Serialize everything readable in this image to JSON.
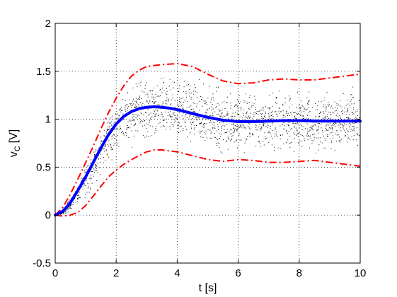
{
  "chart_data": {
    "type": "line",
    "title": "",
    "xlabel": "t [s]",
    "ylabel_main": "v",
    "ylabel_sub": "C",
    "ylabel_unit": "[V]",
    "xlim": [
      0,
      10
    ],
    "ylim": [
      -0.5,
      2
    ],
    "xticks": [
      0,
      2,
      4,
      6,
      8,
      10
    ],
    "yticks": [
      -0.5,
      0,
      0.5,
      1,
      1.5,
      2
    ],
    "xtick_labels": [
      "0",
      "2",
      "4",
      "6",
      "8",
      "10"
    ],
    "ytick_labels": [
      "-0.5",
      "0",
      "0.5",
      "1",
      "1.5",
      "2"
    ],
    "grid": true,
    "legend": "none",
    "colors": {
      "mean": "#0000ff",
      "bounds": "#ff0000",
      "samples": "#000000"
    },
    "series": [
      {
        "role": "mean",
        "style": "solid-thick",
        "x": [
          0,
          0.25,
          0.5,
          0.75,
          1,
          1.25,
          1.5,
          1.75,
          2,
          2.25,
          2.5,
          2.75,
          3,
          3.25,
          3.5,
          3.75,
          4,
          4.5,
          5,
          5.5,
          6,
          6.5,
          7,
          7.5,
          8,
          8.5,
          9,
          9.5,
          10
        ],
        "y": [
          0,
          0.04,
          0.13,
          0.26,
          0.4,
          0.55,
          0.7,
          0.84,
          0.95,
          1.03,
          1.08,
          1.11,
          1.125,
          1.13,
          1.125,
          1.115,
          1.1,
          1.06,
          1.02,
          0.99,
          0.975,
          0.975,
          0.98,
          0.985,
          0.985,
          0.98,
          0.98,
          0.98,
          0.98
        ]
      },
      {
        "role": "upper-bound",
        "style": "dash-dot",
        "x": [
          0,
          0.25,
          0.5,
          0.75,
          1,
          1.25,
          1.5,
          1.75,
          2,
          2.25,
          2.5,
          2.75,
          3,
          3.5,
          4,
          4.5,
          5,
          5.5,
          6,
          6.5,
          7,
          7.5,
          8,
          8.5,
          9,
          9.5,
          10
        ],
        "y": [
          0,
          0.08,
          0.22,
          0.38,
          0.55,
          0.72,
          0.9,
          1.07,
          1.22,
          1.35,
          1.45,
          1.51,
          1.55,
          1.57,
          1.58,
          1.55,
          1.47,
          1.4,
          1.37,
          1.38,
          1.41,
          1.42,
          1.41,
          1.41,
          1.43,
          1.45,
          1.47
        ]
      },
      {
        "role": "lower-bound",
        "style": "dash-dot",
        "x": [
          0,
          0.25,
          0.5,
          0.75,
          1,
          1.25,
          1.5,
          1.75,
          2,
          2.25,
          2.5,
          2.75,
          3,
          3.25,
          3.5,
          4,
          4.5,
          5,
          5.5,
          6,
          6.5,
          7,
          7.5,
          8,
          8.5,
          9,
          9.5,
          10
        ],
        "y": [
          0,
          -0.01,
          0,
          0.03,
          0.1,
          0.2,
          0.3,
          0.4,
          0.47,
          0.53,
          0.58,
          0.62,
          0.66,
          0.68,
          0.68,
          0.66,
          0.62,
          0.58,
          0.56,
          0.58,
          0.57,
          0.55,
          0.55,
          0.56,
          0.57,
          0.55,
          0.53,
          0.51
        ]
      }
    ],
    "sample_cloud": {
      "description_visible": "dense black dotted Monte Carlo trajectories between the bounds",
      "count": 1800
    }
  }
}
